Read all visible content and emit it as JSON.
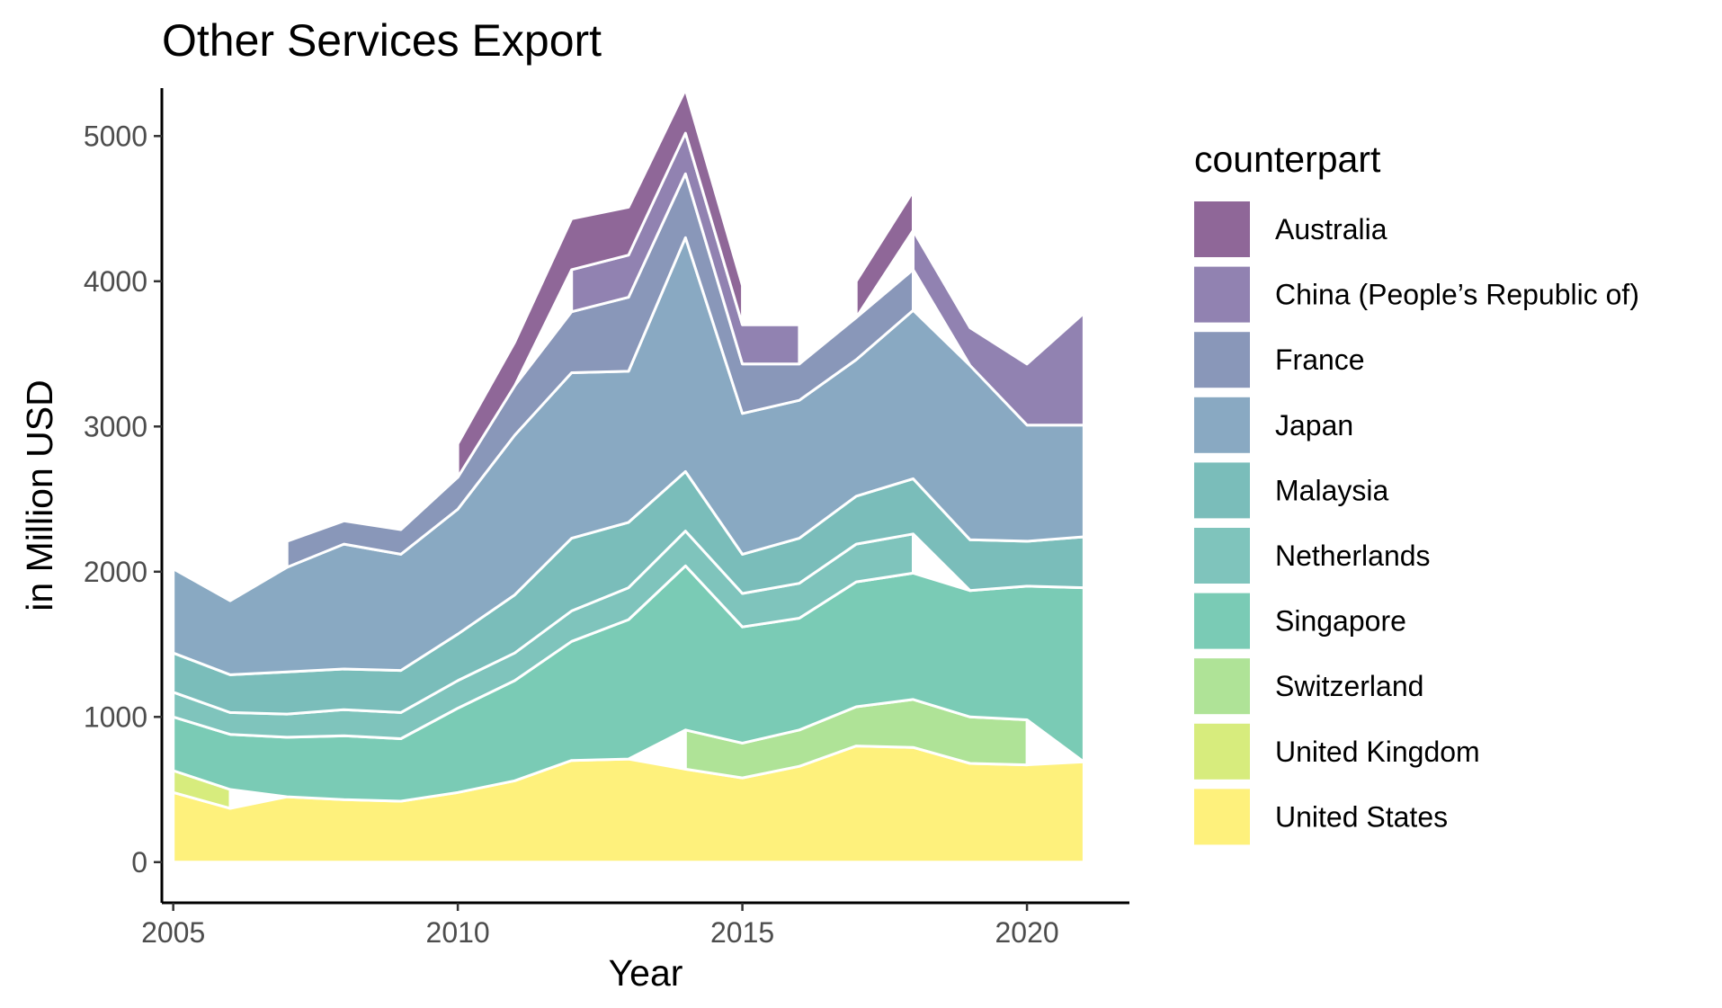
{
  "chart_data": {
    "type": "area",
    "stacked": true,
    "title": "Other Services Export",
    "xlabel": "Year",
    "ylabel": "in Million USD",
    "xlim": [
      2004.8,
      2021.8
    ],
    "ylim": [
      -280,
      5330
    ],
    "x_ticks": [
      2005,
      2010,
      2015,
      2020
    ],
    "y_ticks": [
      0,
      1000,
      2000,
      3000,
      4000,
      5000
    ],
    "grid": false,
    "legend_title": "counterpart",
    "legend_position": "right",
    "x": [
      2005,
      2006,
      2007,
      2008,
      2009,
      2010,
      2011,
      2012,
      2013,
      2014,
      2015,
      2016,
      2017,
      2018,
      2019,
      2020,
      2021
    ],
    "series": [
      {
        "name": "United States",
        "color": "#fde725",
        "values": [
          480,
          370,
          450,
          430,
          420,
          480,
          560,
          700,
          710,
          640,
          580,
          660,
          800,
          790,
          680,
          670,
          690
        ]
      },
      {
        "name": "United Kingdom",
        "color": "#bddf26",
        "values": [
          150,
          130,
          null,
          null,
          null,
          null,
          null,
          null,
          null,
          null,
          null,
          null,
          null,
          null,
          null,
          null,
          null
        ]
      },
      {
        "name": "Switzerland",
        "color": "#7ad151",
        "values": [
          null,
          null,
          null,
          null,
          null,
          null,
          null,
          null,
          null,
          270,
          240,
          250,
          270,
          330,
          320,
          310,
          null
        ]
      },
      {
        "name": "Singapore",
        "color": "#22a884",
        "values": [
          370,
          380,
          410,
          440,
          430,
          580,
          690,
          820,
          960,
          1130,
          800,
          770,
          860,
          870,
          870,
          920,
          1200
        ]
      },
      {
        "name": "Netherlands",
        "color": "#2a9d8f",
        "values": [
          170,
          150,
          160,
          180,
          180,
          190,
          190,
          210,
          220,
          240,
          230,
          240,
          260,
          270,
          null,
          null,
          null
        ]
      },
      {
        "name": "Malaysia",
        "color": "#21918c",
        "values": [
          270,
          260,
          290,
          280,
          290,
          320,
          400,
          500,
          450,
          410,
          270,
          310,
          330,
          380,
          350,
          310,
          350
        ]
      },
      {
        "name": "Japan",
        "color": "#3b6f9a",
        "values": [
          580,
          510,
          720,
          860,
          800,
          860,
          1100,
          1140,
          1040,
          1610,
          970,
          950,
          940,
          1160,
          1200,
          800,
          770
        ]
      },
      {
        "name": "France",
        "color": "#3b528b",
        "values": [
          null,
          null,
          180,
          160,
          170,
          220,
          340,
          420,
          510,
          440,
          340,
          250,
          290,
          280,
          null,
          null,
          null
        ]
      },
      {
        "name": "China (People’s Republic of)",
        "color": "#472f7d",
        "values": [
          null,
          null,
          null,
          null,
          null,
          null,
          null,
          290,
          290,
          280,
          270,
          270,
          null,
          270,
          260,
          420,
          770
        ]
      },
      {
        "name": "Australia",
        "color": "#440154",
        "values": [
          null,
          null,
          null,
          null,
          null,
          230,
          300,
          350,
          330,
          300,
          270,
          null,
          250,
          270,
          null,
          null,
          null
        ]
      }
    ]
  }
}
